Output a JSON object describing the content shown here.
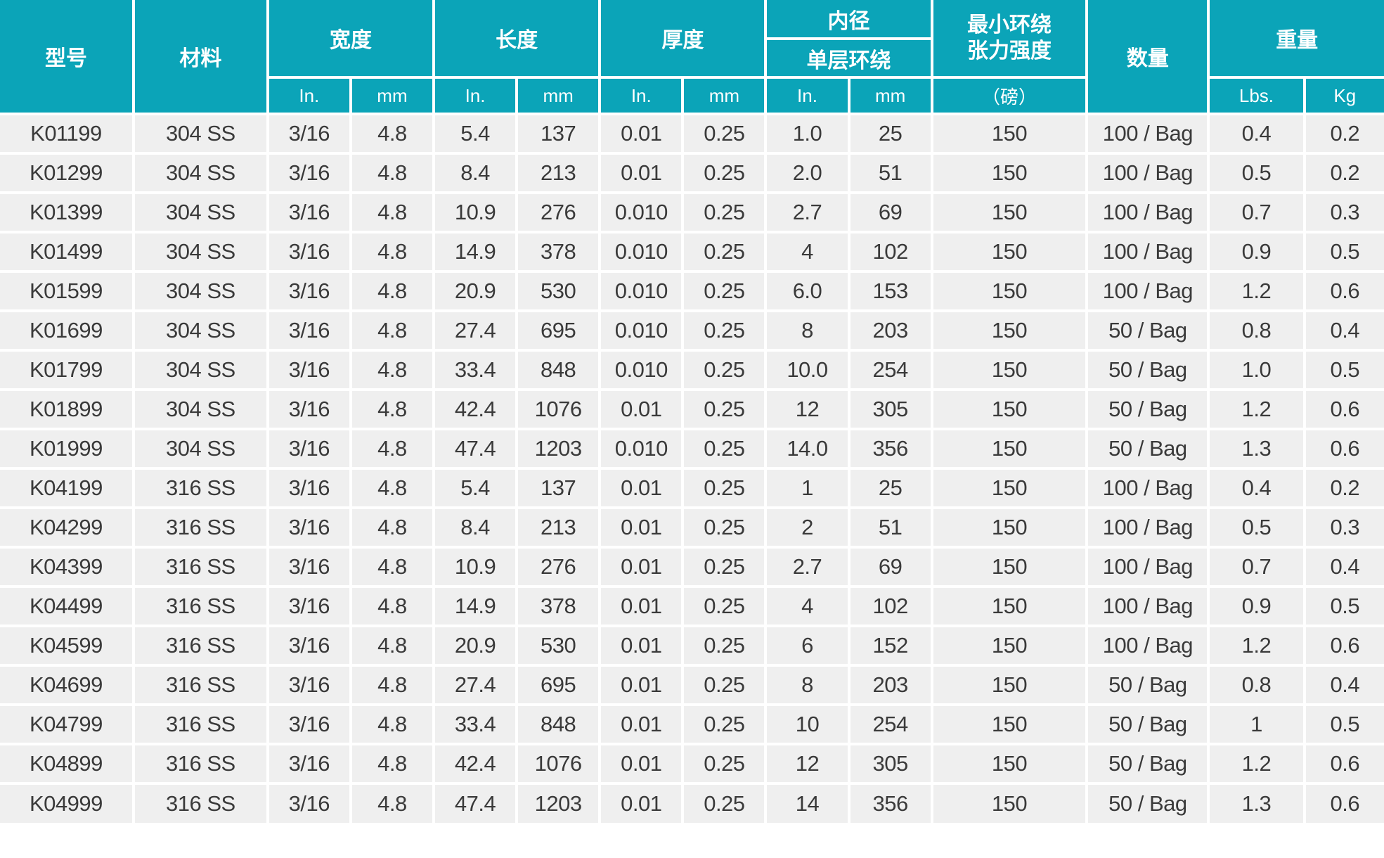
{
  "table": {
    "colors": {
      "header_bg": "#0ba4b8",
      "row_bg": "#efefef",
      "header_text": "#ffffff",
      "body_text": "#3a3a3a",
      "grid_gap": "#ffffff"
    },
    "header": {
      "model": "型号",
      "material": "材料",
      "width": "宽度",
      "length": "长度",
      "thickness": "厚度",
      "inner_diameter": "内径",
      "single_layer_wrap": "单层环绕",
      "min_wrap_tensile_strength": "最小环绕\n张力强度",
      "pounds": "（磅）",
      "quantity": "数量",
      "weight": "重量",
      "unit_in": "In.",
      "unit_mm": "mm",
      "unit_lbs": "Lbs.",
      "unit_kg": "Kg"
    },
    "rows": [
      [
        "K01199",
        "304 SS",
        "3/16",
        "4.8",
        "5.4",
        "137",
        "0.01",
        "0.25",
        "1.0",
        "25",
        "150",
        "100 / Bag",
        "0.4",
        "0.2"
      ],
      [
        "K01299",
        "304 SS",
        "3/16",
        "4.8",
        "8.4",
        "213",
        "0.01",
        "0.25",
        "2.0",
        "51",
        "150",
        "100 / Bag",
        "0.5",
        "0.2"
      ],
      [
        "K01399",
        "304 SS",
        "3/16",
        "4.8",
        "10.9",
        "276",
        "0.010",
        "0.25",
        "2.7",
        "69",
        "150",
        "100 / Bag",
        "0.7",
        "0.3"
      ],
      [
        "K01499",
        "304 SS",
        "3/16",
        "4.8",
        "14.9",
        "378",
        "0.010",
        "0.25",
        "4",
        "102",
        "150",
        "100 / Bag",
        "0.9",
        "0.5"
      ],
      [
        "K01599",
        "304 SS",
        "3/16",
        "4.8",
        "20.9",
        "530",
        "0.010",
        "0.25",
        "6.0",
        "153",
        "150",
        "100 / Bag",
        "1.2",
        "0.6"
      ],
      [
        "K01699",
        "304 SS",
        "3/16",
        "4.8",
        "27.4",
        "695",
        "0.010",
        "0.25",
        "8",
        "203",
        "150",
        "50 / Bag",
        "0.8",
        "0.4"
      ],
      [
        "K01799",
        "304 SS",
        "3/16",
        "4.8",
        "33.4",
        "848",
        "0.010",
        "0.25",
        "10.0",
        "254",
        "150",
        "50 / Bag",
        "1.0",
        "0.5"
      ],
      [
        "K01899",
        "304 SS",
        "3/16",
        "4.8",
        "42.4",
        "1076",
        "0.01",
        "0.25",
        "12",
        "305",
        "150",
        "50 / Bag",
        "1.2",
        "0.6"
      ],
      [
        "K01999",
        "304 SS",
        "3/16",
        "4.8",
        "47.4",
        "1203",
        "0.010",
        "0.25",
        "14.0",
        "356",
        "150",
        "50 / Bag",
        "1.3",
        "0.6"
      ],
      [
        "K04199",
        "316 SS",
        "3/16",
        "4.8",
        "5.4",
        "137",
        "0.01",
        "0.25",
        "1",
        "25",
        "150",
        "100 / Bag",
        "0.4",
        "0.2"
      ],
      [
        "K04299",
        "316 SS",
        "3/16",
        "4.8",
        "8.4",
        "213",
        "0.01",
        "0.25",
        "2",
        "51",
        "150",
        "100 / Bag",
        "0.5",
        "0.3"
      ],
      [
        "K04399",
        "316 SS",
        "3/16",
        "4.8",
        "10.9",
        "276",
        "0.01",
        "0.25",
        "2.7",
        "69",
        "150",
        "100 / Bag",
        "0.7",
        "0.4"
      ],
      [
        "K04499",
        "316 SS",
        "3/16",
        "4.8",
        "14.9",
        "378",
        "0.01",
        "0.25",
        "4",
        "102",
        "150",
        "100 / Bag",
        "0.9",
        "0.5"
      ],
      [
        "K04599",
        "316 SS",
        "3/16",
        "4.8",
        "20.9",
        "530",
        "0.01",
        "0.25",
        "6",
        "152",
        "150",
        "100 / Bag",
        "1.2",
        "0.6"
      ],
      [
        "K04699",
        "316 SS",
        "3/16",
        "4.8",
        "27.4",
        "695",
        "0.01",
        "0.25",
        "8",
        "203",
        "150",
        "50 / Bag",
        "0.8",
        "0.4"
      ],
      [
        "K04799",
        "316 SS",
        "3/16",
        "4.8",
        "33.4",
        "848",
        "0.01",
        "0.25",
        "10",
        "254",
        "150",
        "50 / Bag",
        "1",
        "0.5"
      ],
      [
        "K04899",
        "316 SS",
        "3/16",
        "4.8",
        "42.4",
        "1076",
        "0.01",
        "0.25",
        "12",
        "305",
        "150",
        "50 / Bag",
        "1.2",
        "0.6"
      ],
      [
        "K04999",
        "316 SS",
        "3/16",
        "4.8",
        "47.4",
        "1203",
        "0.01",
        "0.25",
        "14",
        "356",
        "150",
        "50 / Bag",
        "1.3",
        "0.6"
      ]
    ]
  }
}
